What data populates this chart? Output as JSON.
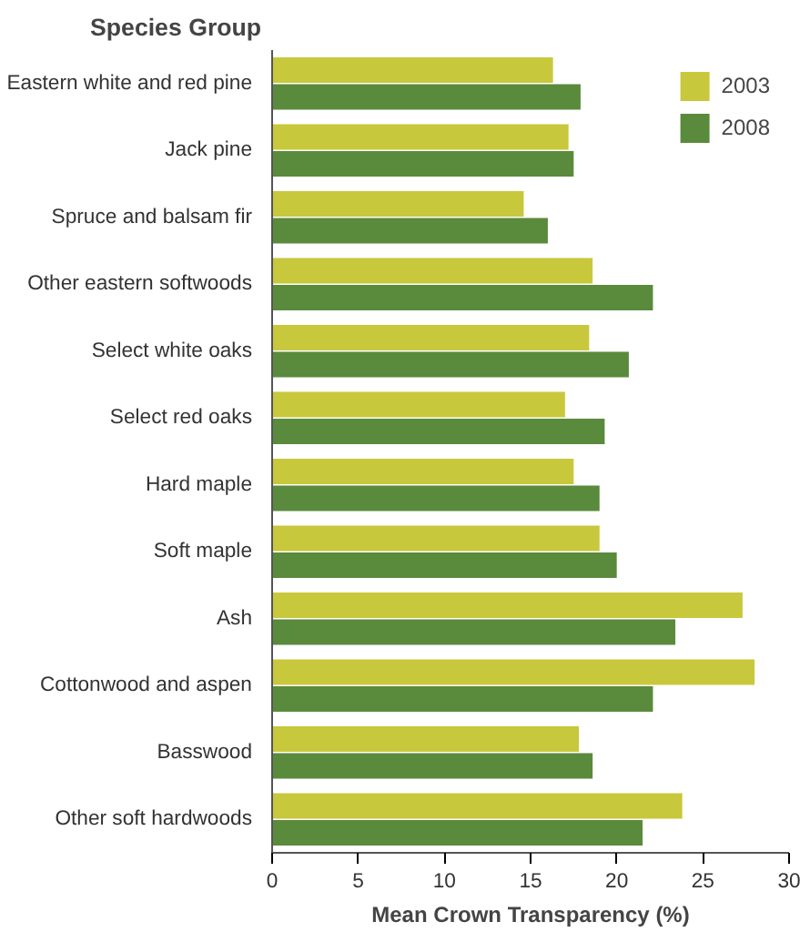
{
  "chart_data": {
    "type": "bar",
    "orientation": "horizontal",
    "title": "Species Group",
    "xlabel": "Mean Crown Transparency (%)",
    "categories": [
      "Eastern white and red pine",
      "Jack pine",
      "Spruce and balsam fir",
      "Other eastern softwoods",
      "Select white oaks",
      "Select red oaks",
      "Hard maple",
      "Soft maple",
      "Ash",
      "Cottonwood and aspen",
      "Basswood",
      "Other soft hardwoods"
    ],
    "series": [
      {
        "name": "2003",
        "color": "#c8c83c",
        "values": [
          16.3,
          17.2,
          14.6,
          18.6,
          18.4,
          17.0,
          17.5,
          19.0,
          27.3,
          28.0,
          17.8,
          23.8
        ]
      },
      {
        "name": "2008",
        "color": "#5a8a3c",
        "values": [
          17.9,
          17.5,
          16.0,
          22.1,
          20.7,
          19.3,
          19.0,
          20.0,
          23.4,
          22.1,
          18.6,
          21.5
        ]
      }
    ],
    "xlim": [
      0,
      30
    ],
    "xticks": [
      0,
      5,
      10,
      15,
      20,
      25,
      30
    ],
    "grid": false,
    "legend": "top right"
  }
}
